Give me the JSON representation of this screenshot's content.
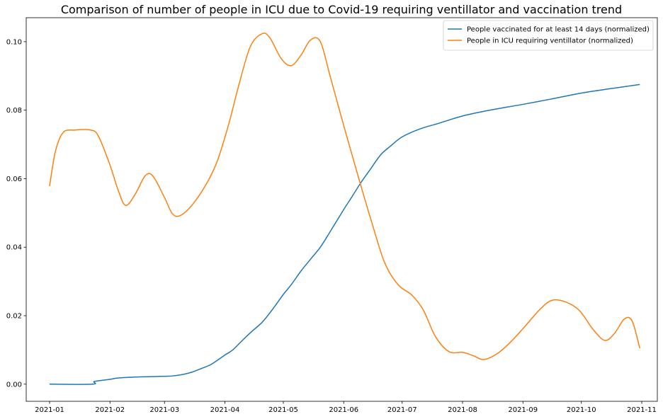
{
  "chart_data": {
    "type": "line",
    "title": "Comparison of number of people in ICU due to Covid-19 requiring ventillator and vaccination trend",
    "xlabel": "",
    "ylabel": "",
    "xlim": [
      "2020-12-20",
      "2021-11-09"
    ],
    "ylim": [
      -0.005,
      0.107
    ],
    "x_ticks": [
      "2021-01",
      "2021-02",
      "2021-03",
      "2021-04",
      "2021-05",
      "2021-06",
      "2021-07",
      "2021-08",
      "2021-09",
      "2021-10",
      "2021-11"
    ],
    "y_ticks": [
      "0.00",
      "0.02",
      "0.04",
      "0.06",
      "0.08",
      "0.10"
    ],
    "grid": false,
    "legend_position": "top-right",
    "series": [
      {
        "name": "People vaccinated for at least 14 days (normalized)",
        "color": "#1f77b4",
        "points": [
          [
            "2021-01-01",
            0.0
          ],
          [
            "2021-01-23",
            0.0
          ],
          [
            "2021-01-24",
            0.0008
          ],
          [
            "2021-02-01",
            0.0014
          ],
          [
            "2021-02-05",
            0.0018
          ],
          [
            "2021-02-15",
            0.0021
          ],
          [
            "2021-03-01",
            0.0023
          ],
          [
            "2021-03-05",
            0.0024
          ],
          [
            "2021-03-10",
            0.0028
          ],
          [
            "2021-03-15",
            0.0035
          ],
          [
            "2021-03-20",
            0.0046
          ],
          [
            "2021-03-25",
            0.0058
          ],
          [
            "2021-04-01",
            0.0085
          ],
          [
            "2021-04-05",
            0.01
          ],
          [
            "2021-04-10",
            0.0128
          ],
          [
            "2021-04-15",
            0.0155
          ],
          [
            "2021-04-20",
            0.018
          ],
          [
            "2021-04-25",
            0.0215
          ],
          [
            "2021-05-01",
            0.0262
          ],
          [
            "2021-05-05",
            0.029
          ],
          [
            "2021-05-10",
            0.033
          ],
          [
            "2021-05-15",
            0.0365
          ],
          [
            "2021-05-20",
            0.04
          ],
          [
            "2021-05-25",
            0.0445
          ],
          [
            "2021-06-01",
            0.051
          ],
          [
            "2021-06-05",
            0.0545
          ],
          [
            "2021-06-10",
            0.059
          ],
          [
            "2021-06-15",
            0.063
          ],
          [
            "2021-06-20",
            0.067
          ],
          [
            "2021-06-25",
            0.0695
          ],
          [
            "2021-07-01",
            0.0722
          ],
          [
            "2021-07-10",
            0.0745
          ],
          [
            "2021-07-20",
            0.0762
          ],
          [
            "2021-08-01",
            0.0783
          ],
          [
            "2021-08-15",
            0.08
          ],
          [
            "2021-09-01",
            0.0817
          ],
          [
            "2021-09-15",
            0.0832
          ],
          [
            "2021-10-01",
            0.085
          ],
          [
            "2021-10-15",
            0.0862
          ],
          [
            "2021-10-31",
            0.0875
          ]
        ]
      },
      {
        "name": "People in ICU requiring ventillator (normalized)",
        "color": "#ff7f0e",
        "points": [
          [
            "2021-01-01",
            0.0578
          ],
          [
            "2021-01-04",
            0.068
          ],
          [
            "2021-01-08",
            0.0735
          ],
          [
            "2021-01-14",
            0.0742
          ],
          [
            "2021-01-22",
            0.0742
          ],
          [
            "2021-01-26",
            0.0725
          ],
          [
            "2021-02-01",
            0.064
          ],
          [
            "2021-02-05",
            0.057
          ],
          [
            "2021-02-09",
            0.0522
          ],
          [
            "2021-02-14",
            0.0555
          ],
          [
            "2021-02-19",
            0.0608
          ],
          [
            "2021-02-23",
            0.0608
          ],
          [
            "2021-03-01",
            0.0545
          ],
          [
            "2021-03-05",
            0.0498
          ],
          [
            "2021-03-09",
            0.0492
          ],
          [
            "2021-03-15",
            0.0522
          ],
          [
            "2021-03-22",
            0.058
          ],
          [
            "2021-03-28",
            0.065
          ],
          [
            "2021-04-03",
            0.076
          ],
          [
            "2021-04-08",
            0.087
          ],
          [
            "2021-04-14",
            0.0985
          ],
          [
            "2021-04-20",
            0.1023
          ],
          [
            "2021-04-24",
            0.1012
          ],
          [
            "2021-04-30",
            0.095
          ],
          [
            "2021-05-05",
            0.093
          ],
          [
            "2021-05-10",
            0.096
          ],
          [
            "2021-05-15",
            0.1005
          ],
          [
            "2021-05-20",
            0.1
          ],
          [
            "2021-05-25",
            0.09
          ],
          [
            "2021-06-01",
            0.0755
          ],
          [
            "2021-06-08",
            0.0615
          ],
          [
            "2021-06-15",
            0.048
          ],
          [
            "2021-06-22",
            0.0355
          ],
          [
            "2021-06-29",
            0.029
          ],
          [
            "2021-07-06",
            0.026
          ],
          [
            "2021-07-12",
            0.0215
          ],
          [
            "2021-07-18",
            0.014
          ],
          [
            "2021-07-25",
            0.0095
          ],
          [
            "2021-08-01",
            0.0093
          ],
          [
            "2021-08-07",
            0.0082
          ],
          [
            "2021-08-12",
            0.0072
          ],
          [
            "2021-08-19",
            0.009
          ],
          [
            "2021-08-26",
            0.0125
          ],
          [
            "2021-09-03",
            0.0175
          ],
          [
            "2021-09-10",
            0.022
          ],
          [
            "2021-09-16",
            0.0245
          ],
          [
            "2021-09-23",
            0.024
          ],
          [
            "2021-09-30",
            0.0215
          ],
          [
            "2021-10-07",
            0.016
          ],
          [
            "2021-10-13",
            0.0128
          ],
          [
            "2021-10-18",
            0.0148
          ],
          [
            "2021-10-23",
            0.019
          ],
          [
            "2021-10-27",
            0.0185
          ],
          [
            "2021-10-31",
            0.0105
          ]
        ]
      }
    ]
  }
}
